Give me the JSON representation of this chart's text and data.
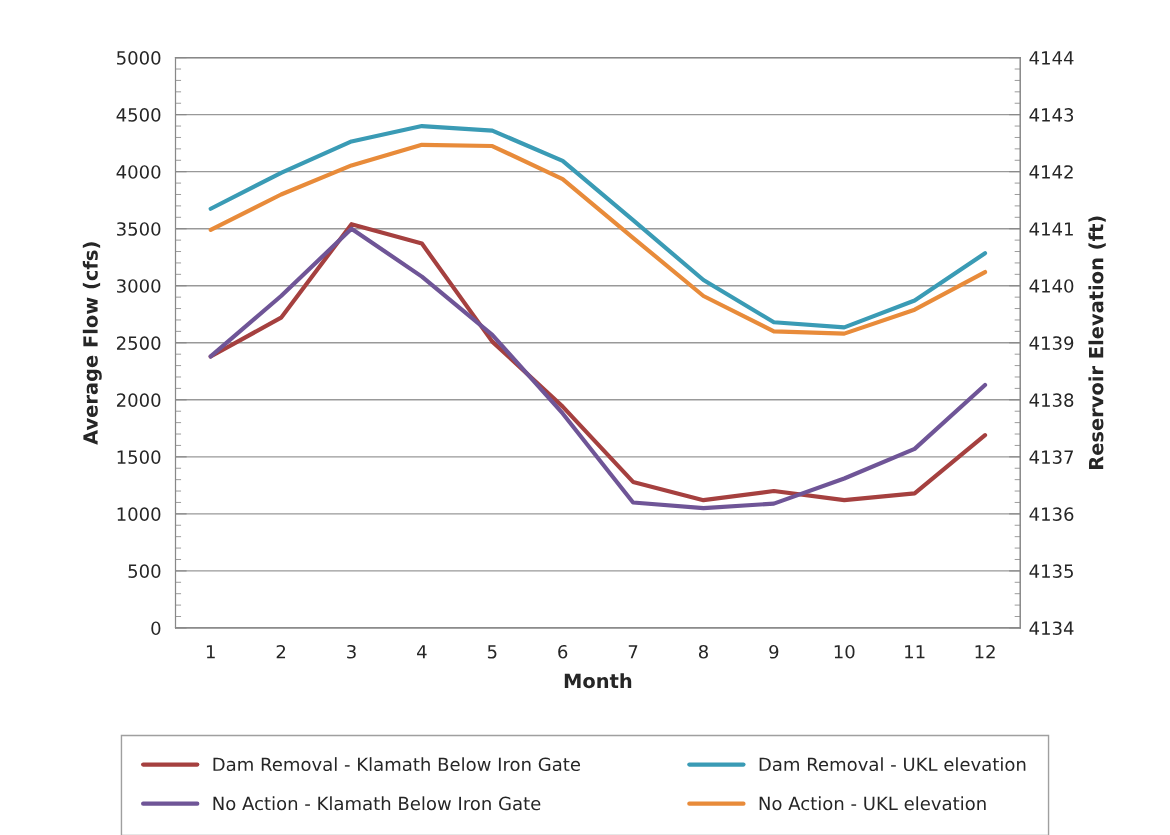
{
  "chart_data": {
    "type": "line",
    "xlabel": "Month",
    "ylabel": "Average Flow (cfs)",
    "y2label": "Reservoir Elevation (ft)",
    "categories": [
      "1",
      "2",
      "3",
      "4",
      "5",
      "6",
      "7",
      "8",
      "9",
      "10",
      "11",
      "12"
    ],
    "ylim": [
      0,
      5000
    ],
    "yticks": [
      0,
      500,
      1000,
      1500,
      2000,
      2500,
      3000,
      3500,
      4000,
      4500,
      5000
    ],
    "y2lim": [
      4134,
      4144
    ],
    "y2ticks": [
      4134,
      4135,
      4136,
      4137,
      4138,
      4139,
      4140,
      4141,
      4142,
      4143,
      4144
    ],
    "grid": "y",
    "legend": "bottom",
    "marker": "none",
    "line_style": "solid",
    "series": [
      {
        "name": "Dam Removal - Klamath Below Iron Gate",
        "color": "#a5403f",
        "values": [
          2380,
          2720,
          3540,
          3370,
          2510,
          1940,
          1280,
          1120,
          1200,
          1120,
          1180,
          1690
        ]
      },
      {
        "name": "No Action - Klamath Below Iron Gate",
        "color": "#6f5597",
        "values": [
          2380,
          2910,
          3500,
          3080,
          2570,
          1880,
          1100,
          1050,
          1090,
          1310,
          1570,
          2130
        ]
      },
      {
        "name": "Dam Removal - UKL elevation",
        "color": "#3a9bb5",
        "axis": "y2",
        "values": [
          4141.35,
          4141.98,
          4142.53,
          4142.8,
          4142.72,
          4142.19,
          4141.15,
          4140.1,
          4139.36,
          4139.27,
          4139.74,
          4140.57
        ]
      },
      {
        "name": "No Action - UKL elevation",
        "color": "#e88b3a",
        "axis": "y2",
        "values": [
          4140.98,
          4141.6,
          4142.11,
          4142.47,
          4142.45,
          4141.87,
          4140.84,
          4139.82,
          4139.2,
          4139.16,
          4139.58,
          4140.24
        ]
      }
    ]
  }
}
